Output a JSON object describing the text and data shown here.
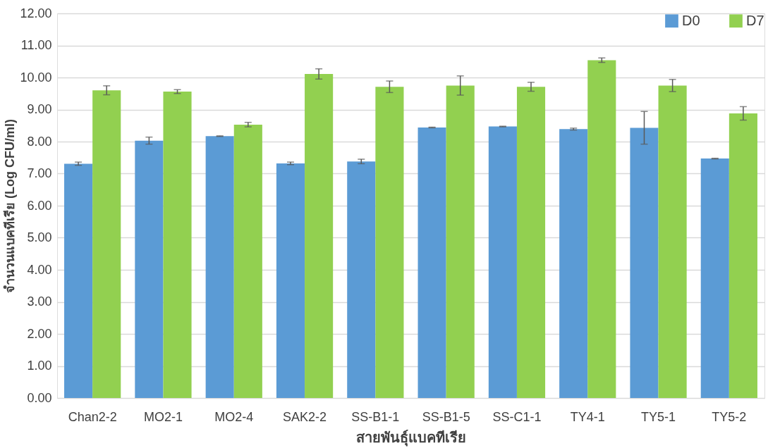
{
  "chart_data": {
    "type": "bar",
    "xlabel": "สายพันธุ์แบคทีเรีย",
    "ylabel": "จำนวนแบคทีเรีย (Log CFU/ml)",
    "categories": [
      "Chan2-2",
      "MO2-1",
      "MO2-4",
      "SAK2-2",
      "SS-B1-1",
      "SS-B1-5",
      "SS-C1-1",
      "TY4-1",
      "TY5-1",
      "TY5-2"
    ],
    "series": [
      {
        "name": "D0",
        "color": "#5b9bd5",
        "values": [
          7.31,
          8.03,
          8.17,
          7.32,
          7.38,
          8.44,
          8.47,
          8.39,
          8.43,
          7.47
        ],
        "errors": [
          0.05,
          0.11,
          0.01,
          0.04,
          0.07,
          0.01,
          0.01,
          0.03,
          0.51,
          0.01
        ]
      },
      {
        "name": "D7",
        "color": "#92d050",
        "values": [
          9.6,
          9.56,
          8.53,
          10.11,
          9.71,
          9.75,
          9.71,
          10.54,
          9.75,
          8.88
        ],
        "errors": [
          0.14,
          0.06,
          0.07,
          0.16,
          0.18,
          0.3,
          0.14,
          0.07,
          0.19,
          0.21
        ]
      }
    ],
    "ylim": [
      0,
      12
    ],
    "yticks": [
      {
        "value": 0,
        "label": "0.00"
      },
      {
        "value": 1,
        "label": "1.00"
      },
      {
        "value": 2,
        "label": "2.00"
      },
      {
        "value": 3,
        "label": "3.00"
      },
      {
        "value": 4,
        "label": "4.00"
      },
      {
        "value": 5,
        "label": "5.00"
      },
      {
        "value": 6,
        "label": "6.00"
      },
      {
        "value": 7,
        "label": "7.00"
      },
      {
        "value": 8,
        "label": "8.00"
      },
      {
        "value": 9,
        "label": "9.00"
      },
      {
        "value": 10,
        "label": "10.00"
      },
      {
        "value": 11,
        "label": "11.00"
      },
      {
        "value": 12,
        "label": "12.00"
      }
    ],
    "grid": "y",
    "legend": "top right"
  }
}
